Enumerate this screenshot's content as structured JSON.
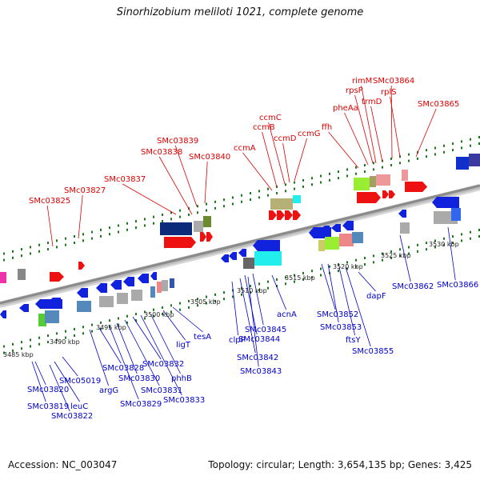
{
  "title": "Sinorhizobium meliloti 1021, complete genome",
  "accession": "Accession: NC_003047",
  "summary": "Topology: circular; Length: 3,654,135 bp; Genes: 3,425",
  "colors": {
    "forward_label": "#dd0000",
    "reverse_label": "#0000cc",
    "backbone": "#888888",
    "tick": "#1a7a1a"
  },
  "scale_labels": [
    "3485 kbp",
    "3490 kbp",
    "3495 kbp",
    "3500 kbp",
    "3505 kbp",
    "3510 kbp",
    "3515 kbp",
    "3520 kbp",
    "3525 kbp",
    "3530 kbp"
  ],
  "forward_genes": [
    "SMc03825",
    "SMc03827",
    "SMc03837",
    "SMc03838",
    "SMc03839",
    "SMc03840",
    "ccmA",
    "ccmB",
    "ccmC",
    "ccmD",
    "ccmG",
    "ffh",
    "pheAa",
    "rpsP",
    "rimM",
    "trmD",
    "SMc03864",
    "rplS",
    "SMc03865"
  ],
  "reverse_genes": [
    "SMc03819",
    "SMc03820",
    "SMc03822",
    "leuC",
    "SMc05019",
    "argG",
    "SMc03828",
    "SMc03829",
    "SMc03830",
    "SMc03831",
    "SMc03832",
    "SMc03833",
    "phhB",
    "ligT",
    "tesA",
    "clpP",
    "SMc03842",
    "SMc03843",
    "SMc03844",
    "SMc03845",
    "acnA",
    "SMc03852",
    "SMc03853",
    "ftsY",
    "SMc03855",
    "dapF",
    "SMc03862",
    "SMc03866"
  ]
}
